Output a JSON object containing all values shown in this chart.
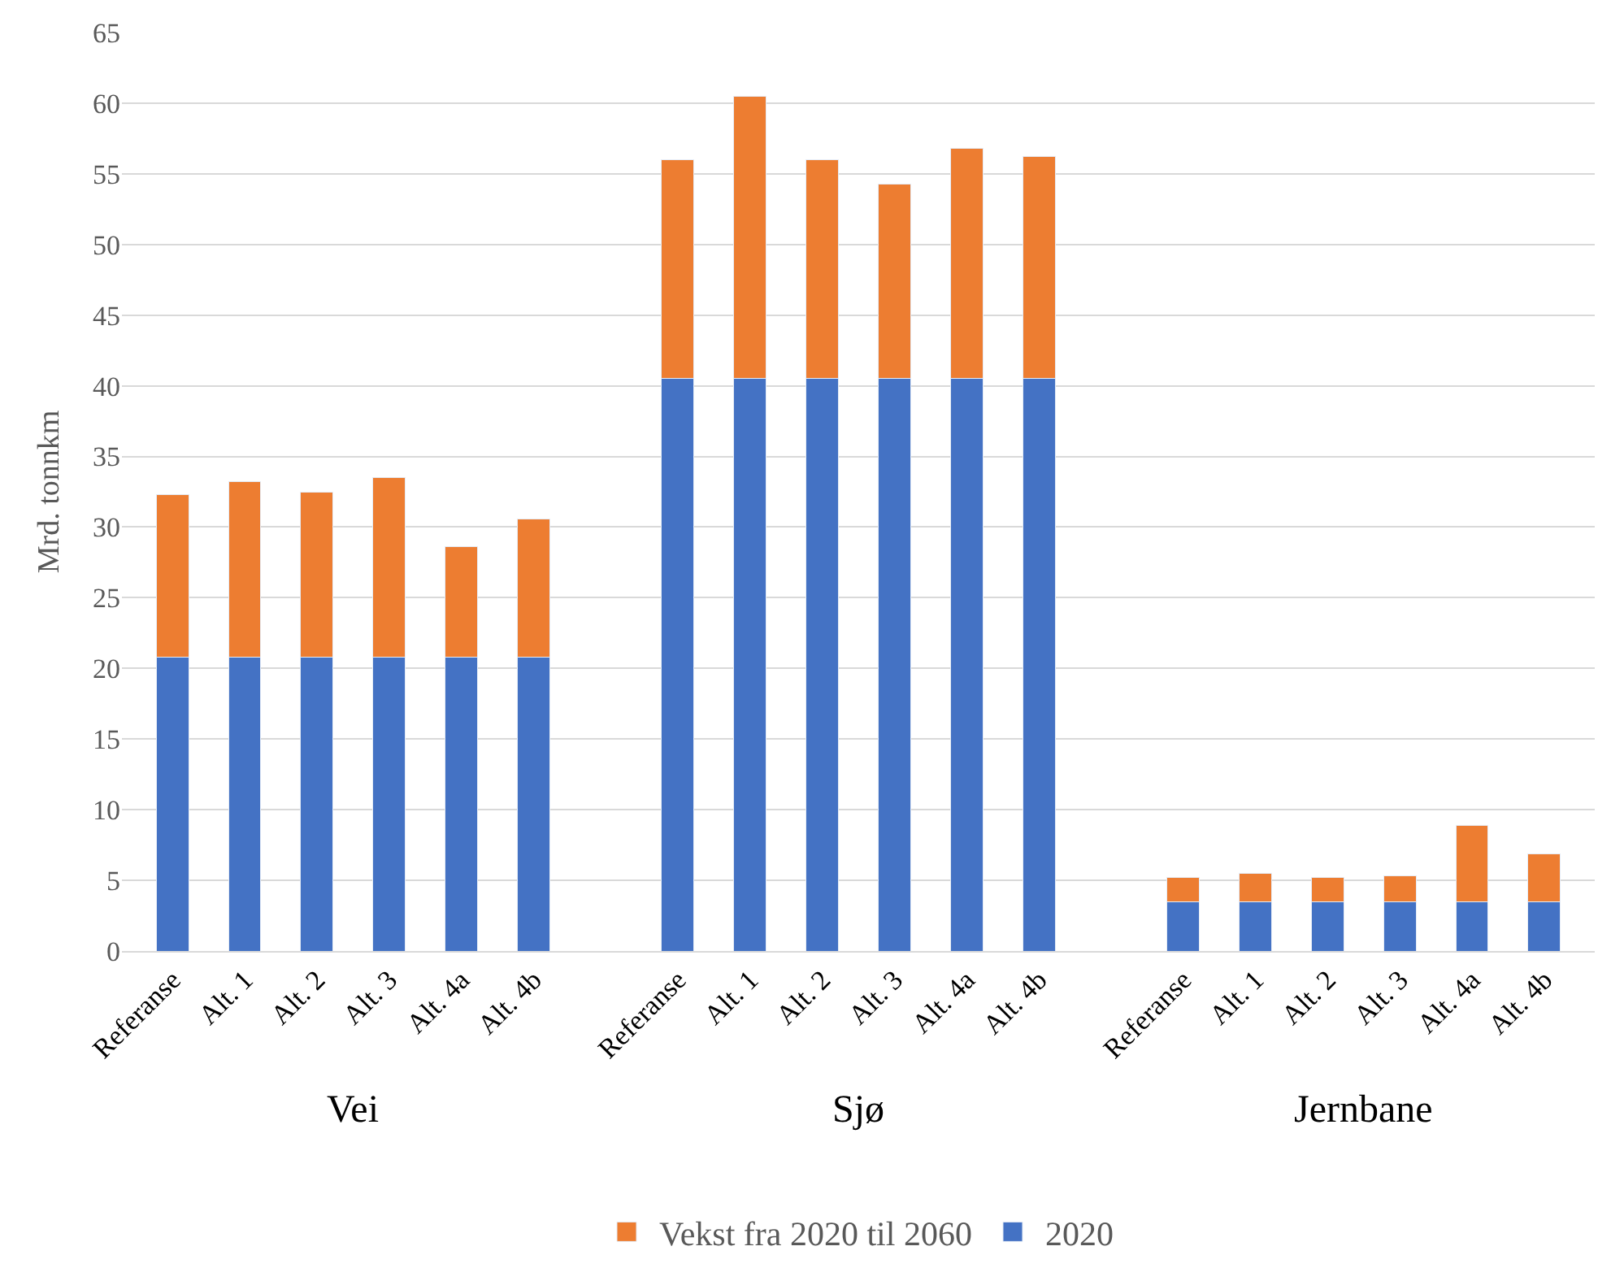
{
  "chart_data": {
    "type": "bar",
    "stacked": true,
    "ylabel": "Mrd. tonnkm",
    "categories": [
      "Referanse",
      "Alt. 1",
      "Alt. 2",
      "Alt. 3",
      "Alt. 4a",
      "Alt. 4b",
      null,
      "Referanse",
      "Alt. 1",
      "Alt. 2",
      "Alt. 3",
      "Alt. 4a",
      "Alt. 4b",
      null,
      "Referanse",
      "Alt. 1",
      "Alt. 2",
      "Alt. 3",
      "Alt. 4a",
      "Alt. 4b"
    ],
    "series": [
      {
        "name": "2020",
        "color": "#4472c4",
        "values": [
          20.8,
          20.8,
          20.8,
          20.8,
          20.8,
          20.8,
          null,
          40.5,
          40.5,
          40.5,
          40.5,
          40.5,
          40.5,
          null,
          3.5,
          3.5,
          3.5,
          3.5,
          3.5,
          3.5
        ]
      },
      {
        "name": "Vekst fra 2020 til 2060",
        "color": "#ed7d31",
        "values": [
          11.5,
          12.4,
          11.7,
          12.7,
          7.8,
          9.8,
          null,
          15.5,
          20.0,
          15.5,
          13.8,
          16.3,
          15.7,
          null,
          1.7,
          2.0,
          1.7,
          1.8,
          5.4,
          3.4
        ]
      }
    ],
    "annotations": [
      "Vei",
      "Sjø",
      "Jernbane"
    ],
    "ylim": [
      0,
      65
    ],
    "yticks": [
      0,
      5,
      10,
      15,
      20,
      25,
      30,
      35,
      40,
      45,
      50,
      55,
      60,
      65
    ],
    "grid": "y",
    "legend": "bottom"
  }
}
